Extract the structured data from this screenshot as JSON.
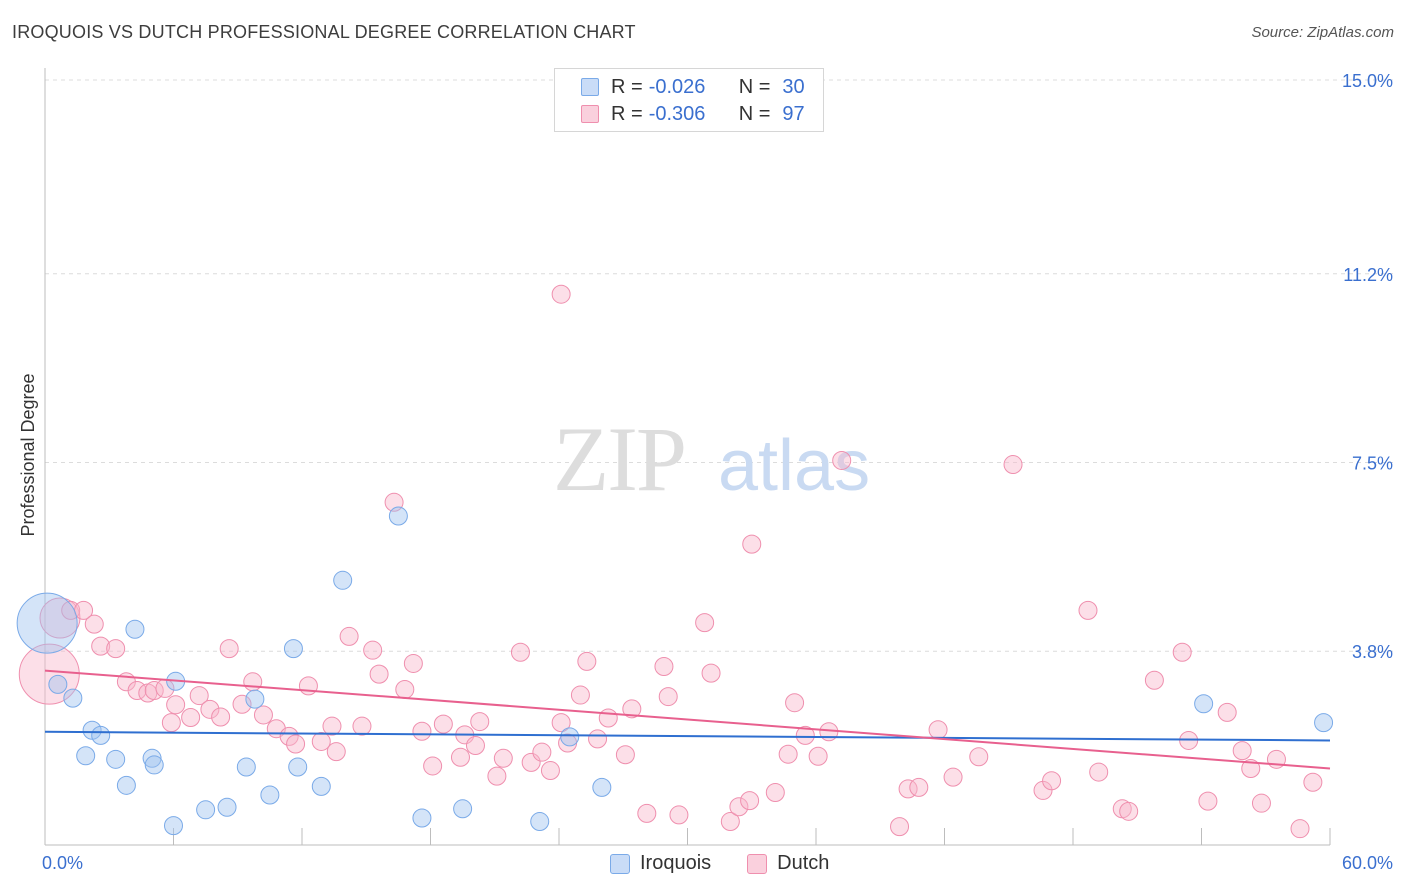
{
  "chart_data": {
    "type": "scatter",
    "title": "IROQUOIS VS DUTCH PROFESSIONAL DEGREE CORRELATION CHART",
    "source": "Source: ZipAtlas.com",
    "watermark": {
      "zip": "ZIP",
      "atlas": "atlas"
    },
    "xlabel": "",
    "ylabel": "Professional Degree",
    "xlim": [
      0,
      60
    ],
    "ylim": [
      0,
      15.0
    ],
    "x_tick_labels": {
      "min": "0.0%",
      "max": "60.0%"
    },
    "y_ticks": [
      {
        "value": 3.8,
        "label": "3.8%"
      },
      {
        "value": 7.5,
        "label": "7.5%"
      },
      {
        "value": 11.2,
        "label": "11.2%"
      },
      {
        "value": 15.0,
        "label": "15.0%"
      }
    ],
    "legend": [
      {
        "name": "Iroquois",
        "r_label": "R = ",
        "r": "-0.026",
        "n_label": "N = ",
        "n": "30",
        "color": "#7aaae8",
        "fill": "#c9dcf7"
      },
      {
        "name": "Dutch",
        "r_label": "R = ",
        "r": "-0.306",
        "n_label": "N = ",
        "n": "97",
        "color": "#ef8fae",
        "fill": "#fad0dd"
      }
    ],
    "series": [
      {
        "name": "Iroquois",
        "color": "#7aaae8",
        "trend": {
          "x0": 0,
          "y0": 2.22,
          "x1": 60,
          "y1": 2.05,
          "color": "#2f6fd0"
        },
        "points": [
          [
            0.1,
            4.35
          ],
          [
            0.6,
            3.15
          ],
          [
            1.3,
            2.88
          ],
          [
            1.9,
            1.75
          ],
          [
            2.2,
            2.25
          ],
          [
            2.6,
            2.15
          ],
          [
            3.3,
            1.68
          ],
          [
            3.8,
            1.17
          ],
          [
            4.2,
            4.23
          ],
          [
            5.0,
            1.7
          ],
          [
            5.1,
            1.57
          ],
          [
            6.0,
            0.38
          ],
          [
            6.1,
            3.21
          ],
          [
            7.5,
            0.69
          ],
          [
            8.5,
            0.74
          ],
          [
            9.4,
            1.53
          ],
          [
            9.8,
            2.86
          ],
          [
            10.5,
            0.98
          ],
          [
            11.6,
            3.85
          ],
          [
            11.8,
            1.53
          ],
          [
            12.9,
            1.15
          ],
          [
            13.9,
            5.19
          ],
          [
            16.5,
            6.45
          ],
          [
            17.6,
            0.53
          ],
          [
            19.5,
            0.71
          ],
          [
            23.1,
            0.46
          ],
          [
            24.5,
            2.12
          ],
          [
            26.0,
            1.13
          ],
          [
            54.1,
            2.77
          ],
          [
            59.7,
            2.4
          ]
        ],
        "sizes": {
          "0": 30
        }
      },
      {
        "name": "Dutch",
        "color": "#ef8fae",
        "trend": {
          "x0": 0,
          "y0": 3.42,
          "x1": 60,
          "y1": 1.5,
          "color": "#e8608e"
        },
        "points": [
          [
            0.2,
            3.35
          ],
          [
            0.7,
            4.45
          ],
          [
            1.2,
            4.6
          ],
          [
            1.8,
            4.6
          ],
          [
            2.3,
            4.33
          ],
          [
            2.6,
            3.9
          ],
          [
            3.3,
            3.85
          ],
          [
            3.8,
            3.2
          ],
          [
            4.3,
            3.03
          ],
          [
            4.8,
            2.98
          ],
          [
            5.1,
            3.03
          ],
          [
            5.6,
            3.07
          ],
          [
            5.9,
            2.4
          ],
          [
            6.1,
            2.75
          ],
          [
            6.8,
            2.5
          ],
          [
            7.2,
            2.93
          ],
          [
            7.7,
            2.66
          ],
          [
            8.2,
            2.51
          ],
          [
            8.6,
            3.85
          ],
          [
            9.2,
            2.76
          ],
          [
            9.7,
            3.2
          ],
          [
            10.2,
            2.55
          ],
          [
            10.8,
            2.28
          ],
          [
            11.4,
            2.13
          ],
          [
            11.7,
            1.98
          ],
          [
            12.3,
            3.12
          ],
          [
            12.9,
            2.03
          ],
          [
            13.4,
            2.33
          ],
          [
            13.6,
            1.83
          ],
          [
            14.2,
            4.09
          ],
          [
            14.8,
            2.33
          ],
          [
            15.3,
            3.82
          ],
          [
            15.6,
            3.35
          ],
          [
            16.3,
            6.72
          ],
          [
            16.8,
            3.05
          ],
          [
            17.2,
            3.56
          ],
          [
            17.6,
            2.23
          ],
          [
            18.1,
            1.55
          ],
          [
            18.6,
            2.37
          ],
          [
            19.4,
            1.72
          ],
          [
            19.6,
            2.16
          ],
          [
            20.1,
            1.95
          ],
          [
            20.3,
            2.42
          ],
          [
            21.1,
            1.35
          ],
          [
            21.4,
            1.7
          ],
          [
            22.2,
            3.78
          ],
          [
            22.7,
            1.62
          ],
          [
            23.2,
            1.82
          ],
          [
            23.6,
            1.46
          ],
          [
            24.1,
            2.4
          ],
          [
            24.4,
            2.0
          ],
          [
            25.0,
            2.94
          ],
          [
            25.3,
            3.6
          ],
          [
            25.8,
            2.08
          ],
          [
            26.3,
            2.49
          ],
          [
            27.1,
            1.77
          ],
          [
            27.4,
            2.67
          ],
          [
            28.1,
            0.62
          ],
          [
            28.9,
            3.5
          ],
          [
            29.1,
            2.91
          ],
          [
            29.6,
            0.59
          ],
          [
            30.8,
            4.36
          ],
          [
            31.1,
            3.37
          ],
          [
            32.0,
            0.46
          ],
          [
            32.4,
            0.75
          ],
          [
            32.9,
            0.87
          ],
          [
            33.0,
            5.9
          ],
          [
            34.1,
            1.03
          ],
          [
            34.7,
            1.78
          ],
          [
            35.0,
            2.79
          ],
          [
            35.5,
            2.15
          ],
          [
            36.1,
            1.74
          ],
          [
            36.6,
            2.22
          ],
          [
            37.2,
            7.54
          ],
          [
            39.9,
            0.36
          ],
          [
            40.3,
            1.1
          ],
          [
            40.8,
            1.13
          ],
          [
            41.7,
            2.26
          ],
          [
            42.4,
            1.33
          ],
          [
            43.6,
            1.73
          ],
          [
            45.2,
            7.46
          ],
          [
            46.6,
            1.07
          ],
          [
            47.0,
            1.26
          ],
          [
            48.7,
            4.6
          ],
          [
            49.2,
            1.43
          ],
          [
            50.3,
            0.71
          ],
          [
            50.6,
            0.66
          ],
          [
            51.8,
            3.23
          ],
          [
            53.1,
            3.78
          ],
          [
            53.4,
            2.05
          ],
          [
            54.3,
            0.86
          ],
          [
            55.2,
            2.6
          ],
          [
            55.9,
            1.85
          ],
          [
            56.3,
            1.5
          ],
          [
            56.8,
            0.82
          ],
          [
            57.5,
            1.68
          ],
          [
            58.6,
            0.32
          ],
          [
            59.2,
            1.23
          ],
          [
            24.1,
            10.8
          ]
        ],
        "sizes": {
          "0": 30,
          "1": 20
        }
      }
    ]
  }
}
